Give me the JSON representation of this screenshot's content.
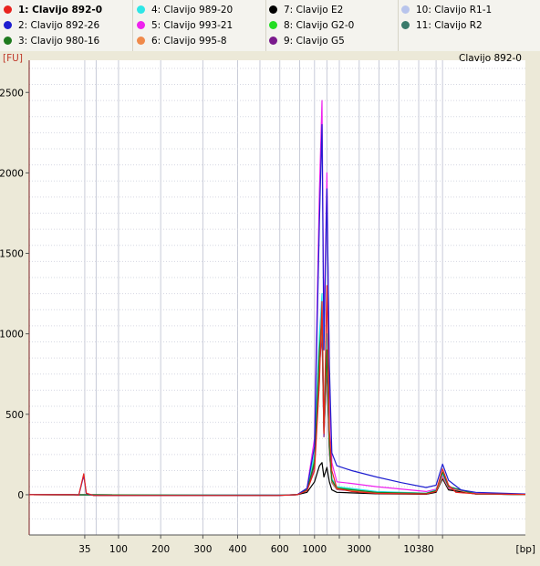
{
  "legend": {
    "items": [
      {
        "label": "1: Clavijo 892-0",
        "color": "#e8231e",
        "selected": true
      },
      {
        "label": "2: Clavijo 892-26",
        "color": "#1e1ed0"
      },
      {
        "label": "3: Clavijo 980-16",
        "color": "#1f7a1f"
      },
      {
        "label": "4: Clavijo 989-20",
        "color": "#2ee6e6"
      },
      {
        "label": "5: Clavijo 993-21",
        "color": "#ee22ee"
      },
      {
        "label": "6: Clavijo 995-8",
        "color": "#f08a4b"
      },
      {
        "label": "7: Clavijo E2",
        "color": "#000000"
      },
      {
        "label": "8: Clavijo G2-0",
        "color": "#22dd22"
      },
      {
        "label": "9: Clavijo G5",
        "color": "#7a1a8c"
      },
      {
        "label": "10: Clavijo R1-1",
        "color": "#b8c4ec"
      },
      {
        "label": "11: Clavijo R2",
        "color": "#3a7a6a"
      }
    ]
  },
  "chart_data": {
    "type": "line",
    "panel_title": "Clavijo 892-0",
    "ylabel": "[FU]",
    "xlabel": "[bp]",
    "ylim": [
      -250,
      2700
    ],
    "yticks": [
      0,
      500,
      1000,
      1500,
      2000,
      2500
    ],
    "xticks": [
      "35",
      "100",
      "200",
      "300",
      "400",
      "600",
      "1000",
      "3000",
      "10380"
    ],
    "grid": true,
    "series": [
      {
        "name": "1: Clavijo 892-0",
        "color": "#e8231e",
        "points": [
          [
            0,
            0
          ],
          [
            0.09,
            0
          ],
          [
            0.1,
            -2
          ],
          [
            0.11,
            130
          ],
          [
            0.115,
            10
          ],
          [
            0.13,
            -5
          ],
          [
            0.5,
            -5
          ],
          [
            0.54,
            0
          ],
          [
            0.56,
            25
          ],
          [
            0.575,
            150
          ],
          [
            0.585,
            700
          ],
          [
            0.59,
            1200
          ],
          [
            0.594,
            380
          ],
          [
            0.6,
            1300
          ],
          [
            0.605,
            400
          ],
          [
            0.61,
            150
          ],
          [
            0.62,
            40
          ],
          [
            0.65,
            20
          ],
          [
            0.7,
            8
          ],
          [
            0.8,
            5
          ],
          [
            0.82,
            20
          ],
          [
            0.833,
            160
          ],
          [
            0.845,
            60
          ],
          [
            0.86,
            15
          ],
          [
            0.9,
            6
          ],
          [
            1,
            2
          ]
        ]
      },
      {
        "name": "2: Clavijo 892-26",
        "color": "#1e1ed0",
        "points": [
          [
            0,
            0
          ],
          [
            0.09,
            0
          ],
          [
            0.1,
            -2
          ],
          [
            0.11,
            120
          ],
          [
            0.115,
            8
          ],
          [
            0.13,
            -5
          ],
          [
            0.5,
            -5
          ],
          [
            0.54,
            0
          ],
          [
            0.56,
            40
          ],
          [
            0.575,
            300
          ],
          [
            0.585,
            1700
          ],
          [
            0.59,
            2300
          ],
          [
            0.594,
            900
          ],
          [
            0.6,
            1900
          ],
          [
            0.605,
            800
          ],
          [
            0.61,
            260
          ],
          [
            0.62,
            180
          ],
          [
            0.65,
            150
          ],
          [
            0.7,
            110
          ],
          [
            0.75,
            75
          ],
          [
            0.8,
            45
          ],
          [
            0.82,
            60
          ],
          [
            0.833,
            190
          ],
          [
            0.845,
            90
          ],
          [
            0.87,
            30
          ],
          [
            0.9,
            15
          ],
          [
            1,
            5
          ]
        ]
      },
      {
        "name": "3: Clavijo 980-16",
        "color": "#1f7a1f",
        "points": [
          [
            0,
            0
          ],
          [
            0.5,
            -4
          ],
          [
            0.54,
            0
          ],
          [
            0.56,
            30
          ],
          [
            0.575,
            200
          ],
          [
            0.585,
            900
          ],
          [
            0.59,
            1100
          ],
          [
            0.594,
            400
          ],
          [
            0.6,
            900
          ],
          [
            0.605,
            300
          ],
          [
            0.61,
            90
          ],
          [
            0.62,
            40
          ],
          [
            0.7,
            15
          ],
          [
            0.8,
            8
          ],
          [
            0.82,
            25
          ],
          [
            0.833,
            140
          ],
          [
            0.845,
            50
          ],
          [
            0.9,
            5
          ],
          [
            1,
            2
          ]
        ]
      },
      {
        "name": "4: Clavijo 989-20",
        "color": "#2ee6e6",
        "points": [
          [
            0,
            0
          ],
          [
            0.5,
            -3
          ],
          [
            0.54,
            0
          ],
          [
            0.56,
            35
          ],
          [
            0.575,
            250
          ],
          [
            0.585,
            1000
          ],
          [
            0.59,
            1250
          ],
          [
            0.594,
            500
          ],
          [
            0.6,
            1000
          ],
          [
            0.605,
            350
          ],
          [
            0.61,
            100
          ],
          [
            0.62,
            50
          ],
          [
            0.7,
            20
          ],
          [
            0.8,
            10
          ],
          [
            0.82,
            30
          ],
          [
            0.833,
            130
          ],
          [
            0.845,
            50
          ],
          [
            0.9,
            6
          ],
          [
            1,
            2
          ]
        ]
      },
      {
        "name": "5: Clavijo 993-21",
        "color": "#ee22ee",
        "points": [
          [
            0,
            0
          ],
          [
            0.5,
            -3
          ],
          [
            0.54,
            0
          ],
          [
            0.56,
            40
          ],
          [
            0.575,
            350
          ],
          [
            0.585,
            1900
          ],
          [
            0.59,
            2450
          ],
          [
            0.594,
            1000
          ],
          [
            0.6,
            2000
          ],
          [
            0.605,
            700
          ],
          [
            0.61,
            200
          ],
          [
            0.62,
            80
          ],
          [
            0.65,
            70
          ],
          [
            0.7,
            50
          ],
          [
            0.8,
            20
          ],
          [
            0.82,
            35
          ],
          [
            0.833,
            120
          ],
          [
            0.845,
            45
          ],
          [
            0.9,
            8
          ],
          [
            1,
            3
          ]
        ]
      },
      {
        "name": "6: Clavijo 995-8",
        "color": "#f08a4b",
        "points": [
          [
            0,
            0
          ],
          [
            0.5,
            -4
          ],
          [
            0.54,
            0
          ],
          [
            0.56,
            30
          ],
          [
            0.575,
            200
          ],
          [
            0.585,
            850
          ],
          [
            0.59,
            1050
          ],
          [
            0.594,
            380
          ],
          [
            0.6,
            850
          ],
          [
            0.605,
            280
          ],
          [
            0.61,
            80
          ],
          [
            0.62,
            35
          ],
          [
            0.7,
            12
          ],
          [
            0.8,
            6
          ],
          [
            0.82,
            22
          ],
          [
            0.833,
            110
          ],
          [
            0.845,
            40
          ],
          [
            0.9,
            5
          ],
          [
            1,
            2
          ]
        ]
      },
      {
        "name": "7: Clavijo E2",
        "color": "#000000",
        "points": [
          [
            0,
            0
          ],
          [
            0.5,
            -3
          ],
          [
            0.54,
            0
          ],
          [
            0.56,
            15
          ],
          [
            0.575,
            80
          ],
          [
            0.585,
            180
          ],
          [
            0.59,
            200
          ],
          [
            0.594,
            110
          ],
          [
            0.6,
            170
          ],
          [
            0.605,
            80
          ],
          [
            0.61,
            30
          ],
          [
            0.62,
            15
          ],
          [
            0.7,
            6
          ],
          [
            0.8,
            3
          ],
          [
            0.82,
            15
          ],
          [
            0.833,
            100
          ],
          [
            0.845,
            30
          ],
          [
            0.9,
            4
          ],
          [
            1,
            1
          ]
        ]
      },
      {
        "name": "8: Clavijo G2-0",
        "color": "#22dd22",
        "points": [
          [
            0,
            0
          ],
          [
            0.5,
            -3
          ],
          [
            0.54,
            0
          ],
          [
            0.56,
            30
          ],
          [
            0.575,
            220
          ],
          [
            0.585,
            950
          ],
          [
            0.59,
            1150
          ],
          [
            0.594,
            420
          ],
          [
            0.6,
            950
          ],
          [
            0.605,
            330
          ],
          [
            0.61,
            95
          ],
          [
            0.62,
            45
          ],
          [
            0.7,
            18
          ],
          [
            0.8,
            9
          ],
          [
            0.82,
            28
          ],
          [
            0.833,
            135
          ],
          [
            0.845,
            48
          ],
          [
            0.9,
            6
          ],
          [
            1,
            2
          ]
        ]
      },
      {
        "name": "9: Clavijo G5",
        "color": "#7a1a8c",
        "points": [
          [
            0,
            0
          ],
          [
            0.5,
            -3
          ],
          [
            0.54,
            0
          ],
          [
            0.56,
            25
          ],
          [
            0.575,
            180
          ],
          [
            0.585,
            800
          ],
          [
            0.59,
            1000
          ],
          [
            0.594,
            360
          ],
          [
            0.6,
            800
          ],
          [
            0.605,
            260
          ],
          [
            0.61,
            75
          ],
          [
            0.62,
            32
          ],
          [
            0.7,
            12
          ],
          [
            0.8,
            6
          ],
          [
            0.82,
            20
          ],
          [
            0.833,
            105
          ],
          [
            0.845,
            38
          ],
          [
            0.9,
            5
          ],
          [
            1,
            2
          ]
        ]
      },
      {
        "name": "10: Clavijo R1-1",
        "color": "#b8c4ec",
        "points": [
          [
            0,
            0
          ],
          [
            0.5,
            -3
          ],
          [
            0.54,
            0
          ],
          [
            0.56,
            30
          ],
          [
            0.575,
            200
          ],
          [
            0.585,
            880
          ],
          [
            0.59,
            1080
          ],
          [
            0.594,
            400
          ],
          [
            0.6,
            880
          ],
          [
            0.605,
            300
          ],
          [
            0.61,
            85
          ],
          [
            0.62,
            40
          ],
          [
            0.7,
            14
          ],
          [
            0.8,
            7
          ],
          [
            0.82,
            24
          ],
          [
            0.833,
            115
          ],
          [
            0.845,
            42
          ],
          [
            0.9,
            5
          ],
          [
            1,
            2
          ]
        ]
      },
      {
        "name": "11: Clavijo R2",
        "color": "#3a7a6a",
        "points": [
          [
            0,
            0
          ],
          [
            0.5,
            -3
          ],
          [
            0.54,
            0
          ],
          [
            0.56,
            28
          ],
          [
            0.575,
            190
          ],
          [
            0.585,
            820
          ],
          [
            0.59,
            1020
          ],
          [
            0.594,
            370
          ],
          [
            0.6,
            820
          ],
          [
            0.605,
            270
          ],
          [
            0.61,
            78
          ],
          [
            0.62,
            35
          ],
          [
            0.7,
            13
          ],
          [
            0.8,
            6
          ],
          [
            0.82,
            21
          ],
          [
            0.833,
            108
          ],
          [
            0.845,
            40
          ],
          [
            0.9,
            5
          ],
          [
            1,
            2
          ]
        ]
      }
    ]
  }
}
